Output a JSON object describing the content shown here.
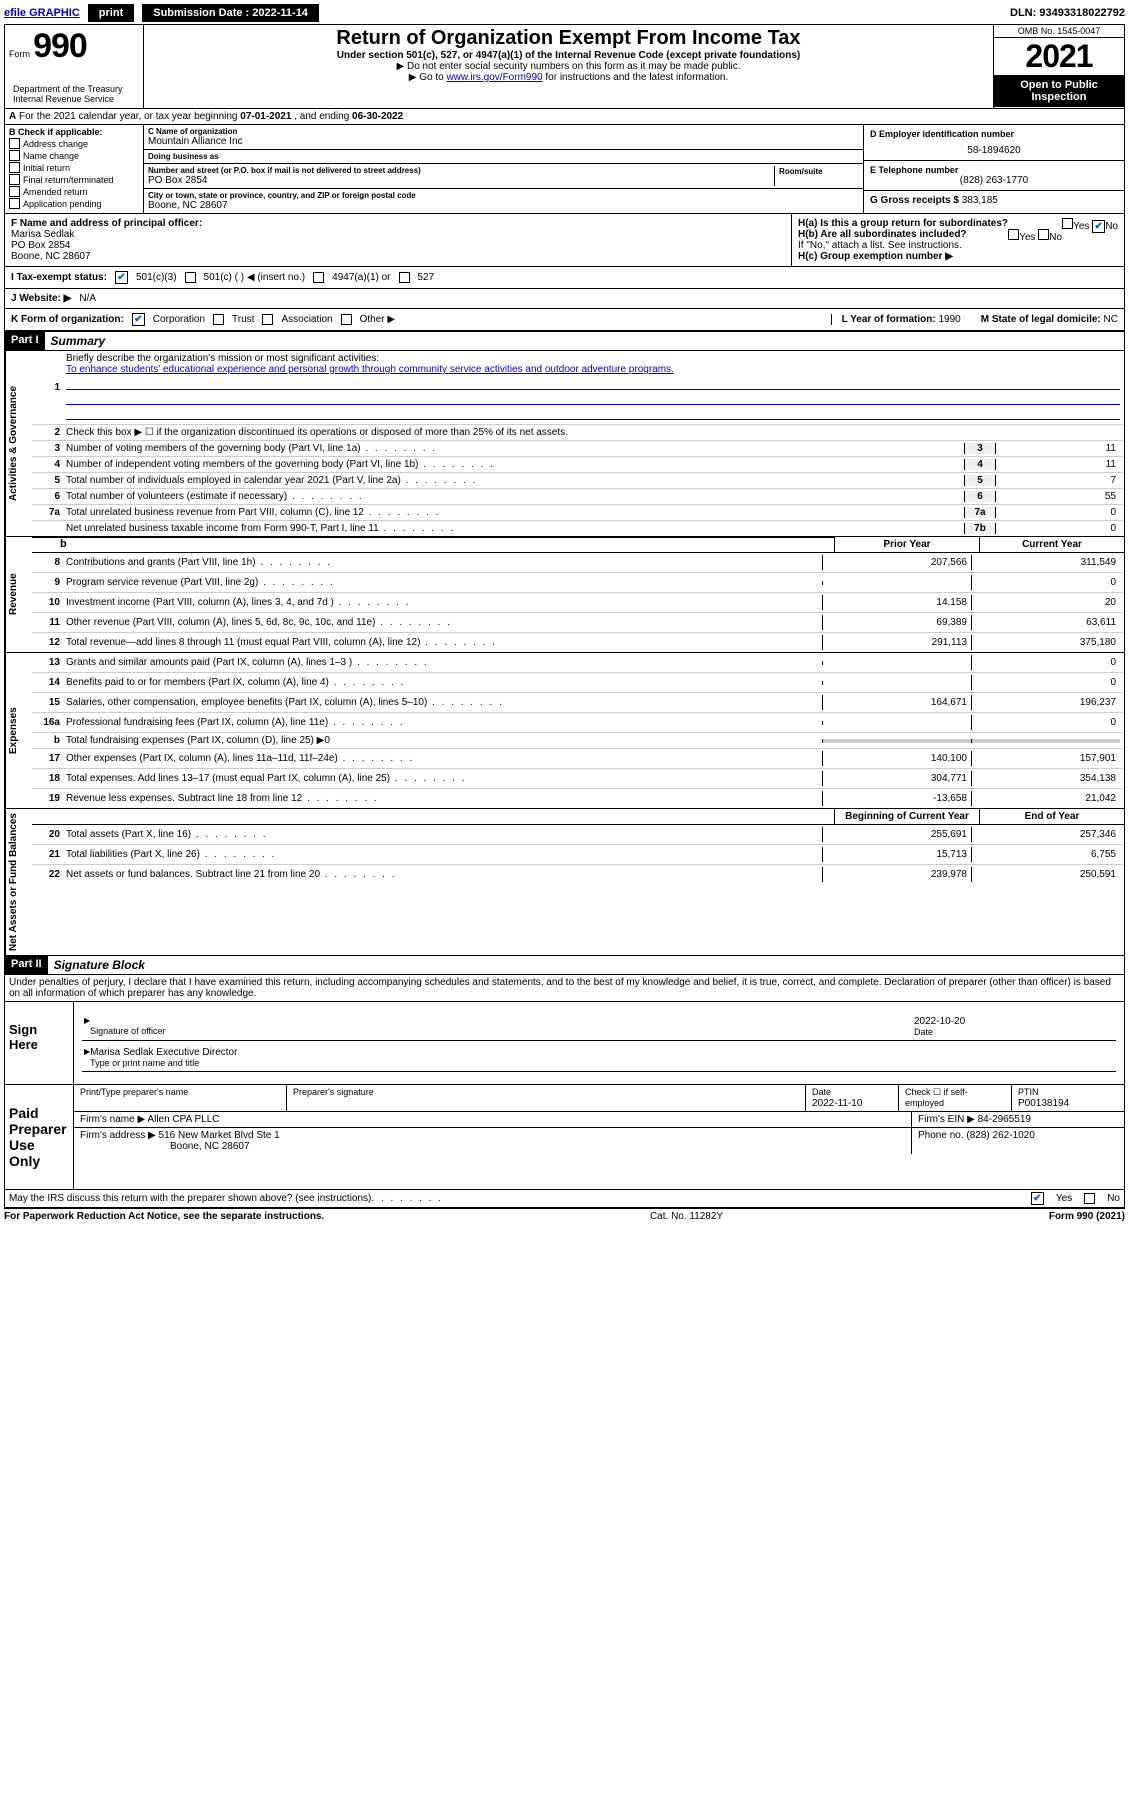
{
  "topbar": {
    "efile": "efile GRAPHIC",
    "print": "print",
    "submission_label": "Submission Date : 2022-11-14",
    "dln": "DLN: 93493318022792"
  },
  "header": {
    "form_label": "Form",
    "form_number": "990",
    "title": "Return of Organization Exempt From Income Tax",
    "subtitle": "Under section 501(c), 527, or 4947(a)(1) of the Internal Revenue Code (except private foundations)",
    "note1": "▶ Do not enter social security numbers on this form as it may be made public.",
    "note2_pre": "▶ Go to ",
    "note2_link": "www.irs.gov/Form990",
    "note2_post": " for instructions and the latest information.",
    "dept": "Department of the Treasury\nInternal Revenue Service",
    "omb": "OMB No. 1545-0047",
    "year": "2021",
    "open_public": "Open to Public Inspection"
  },
  "section_a": {
    "text_pre": "For the 2021 calendar year, or tax year beginning ",
    "begin": "07-01-2021",
    "mid": " , and ending ",
    "end": "06-30-2022"
  },
  "box_b": {
    "label": "B Check if applicable:",
    "items": [
      "Address change",
      "Name change",
      "Initial return",
      "Final return/terminated",
      "Amended return",
      "Application pending"
    ]
  },
  "box_c": {
    "name_label": "C Name of organization",
    "name": "Mountain Alliance Inc",
    "dba_label": "Doing business as",
    "addr_label": "Number and street (or P.O. box if mail is not delivered to street address)",
    "addr": "PO Box 2854",
    "room_label": "Room/suite",
    "city_label": "City or town, state or province, country, and ZIP or foreign postal code",
    "city": "Boone, NC  28607"
  },
  "box_d": {
    "label": "D Employer identification number",
    "value": "58-1894620"
  },
  "box_e": {
    "label": "E Telephone number",
    "value": "(828) 263-1770"
  },
  "box_g": {
    "label": "G Gross receipts $",
    "value": "383,185"
  },
  "box_f": {
    "label": "F Name and address of principal officer:",
    "name": "Marisa Sedlak",
    "addr1": "PO Box 2854",
    "addr2": "Boone, NC  28607"
  },
  "box_h": {
    "ha": "H(a)  Is this a group return for subordinates?",
    "hb": "H(b)  Are all subordinates included?",
    "hb_note": "If \"No,\" attach a list. See instructions.",
    "hc": "H(c)  Group exemption number ▶",
    "yes": "Yes",
    "no": "No"
  },
  "box_i": {
    "label": "I    Tax-exempt status:",
    "opt1": "501(c)(3)",
    "opt2": "501(c) (  ) ◀ (insert no.)",
    "opt3": "4947(a)(1) or",
    "opt4": "527"
  },
  "box_j": {
    "label": "J   Website: ▶",
    "value": "N/A"
  },
  "box_k": {
    "label": "K Form of organization:",
    "corp": "Corporation",
    "trust": "Trust",
    "assoc": "Association",
    "other": "Other ▶",
    "l_label": "L Year of formation:",
    "l_val": "1990",
    "m_label": "M State of legal domicile:",
    "m_val": "NC"
  },
  "part1": {
    "header": "Part I",
    "title": "Summary",
    "q1": "Briefly describe the organization's mission or most significant activities:",
    "q1_ans": "To enhance students' educational experience and personal growth through community service activities and outdoor adventure programs.",
    "q2": "Check this box ▶ ☐  if the organization discontinued its operations or disposed of more than 25% of its net assets.",
    "lines_gov": [
      {
        "n": "3",
        "t": "Number of voting members of the governing body (Part VI, line 1a)",
        "c": "3",
        "v": "11"
      },
      {
        "n": "4",
        "t": "Number of independent voting members of the governing body (Part VI, line 1b)",
        "c": "4",
        "v": "11"
      },
      {
        "n": "5",
        "t": "Total number of individuals employed in calendar year 2021 (Part V, line 2a)",
        "c": "5",
        "v": "7"
      },
      {
        "n": "6",
        "t": "Total number of volunteers (estimate if necessary)",
        "c": "6",
        "v": "55"
      },
      {
        "n": "7a",
        "t": "Total unrelated business revenue from Part VIII, column (C), line 12",
        "c": "7a",
        "v": "0"
      },
      {
        "n": "",
        "t": "Net unrelated business taxable income from Form 990-T, Part I, line 11",
        "c": "7b",
        "v": "0"
      }
    ],
    "prior_hdr": "Prior Year",
    "curr_hdr": "Current Year",
    "lines_rev": [
      {
        "n": "8",
        "t": "Contributions and grants (Part VIII, line 1h)",
        "p": "207,566",
        "c": "311,549"
      },
      {
        "n": "9",
        "t": "Program service revenue (Part VIII, line 2g)",
        "p": "",
        "c": "0"
      },
      {
        "n": "10",
        "t": "Investment income (Part VIII, column (A), lines 3, 4, and 7d )",
        "p": "14,158",
        "c": "20"
      },
      {
        "n": "11",
        "t": "Other revenue (Part VIII, column (A), lines 5, 6d, 8c, 9c, 10c, and 11e)",
        "p": "69,389",
        "c": "63,611"
      },
      {
        "n": "12",
        "t": "Total revenue—add lines 8 through 11 (must equal Part VIII, column (A), line 12)",
        "p": "291,113",
        "c": "375,180"
      }
    ],
    "lines_exp": [
      {
        "n": "13",
        "t": "Grants and similar amounts paid (Part IX, column (A), lines 1–3 )",
        "p": "",
        "c": "0"
      },
      {
        "n": "14",
        "t": "Benefits paid to or for members (Part IX, column (A), line 4)",
        "p": "",
        "c": "0"
      },
      {
        "n": "15",
        "t": "Salaries, other compensation, employee benefits (Part IX, column (A), lines 5–10)",
        "p": "164,671",
        "c": "196,237"
      },
      {
        "n": "16a",
        "t": "Professional fundraising fees (Part IX, column (A), line 11e)",
        "p": "",
        "c": "0"
      },
      {
        "n": "b",
        "t": "Total fundraising expenses (Part IX, column (D), line 25) ▶0",
        "p": "—",
        "c": "—"
      },
      {
        "n": "17",
        "t": "Other expenses (Part IX, column (A), lines 11a–11d, 11f–24e)",
        "p": "140,100",
        "c": "157,901"
      },
      {
        "n": "18",
        "t": "Total expenses. Add lines 13–17 (must equal Part IX, column (A), line 25)",
        "p": "304,771",
        "c": "354,138"
      },
      {
        "n": "19",
        "t": "Revenue less expenses. Subtract line 18 from line 12",
        "p": "-13,658",
        "c": "21,042"
      }
    ],
    "boy_hdr": "Beginning of Current Year",
    "eoy_hdr": "End of Year",
    "lines_net": [
      {
        "n": "20",
        "t": "Total assets (Part X, line 16)",
        "p": "255,691",
        "c": "257,346"
      },
      {
        "n": "21",
        "t": "Total liabilities (Part X, line 26)",
        "p": "15,713",
        "c": "6,755"
      },
      {
        "n": "22",
        "t": "Net assets or fund balances. Subtract line 21 from line 20",
        "p": "239,978",
        "c": "250,591"
      }
    ],
    "vlabels": {
      "gov": "Activities & Governance",
      "rev": "Revenue",
      "exp": "Expenses",
      "net": "Net Assets or Fund Balances"
    }
  },
  "part2": {
    "header": "Part II",
    "title": "Signature Block",
    "perjury": "Under penalties of perjury, I declare that I have examined this return, including accompanying schedules and statements, and to the best of my knowledge and belief, it is true, correct, and complete. Declaration of preparer (other than officer) is based on all information of which preparer has any knowledge.",
    "sign_here": "Sign Here",
    "sig_officer": "Signature of officer",
    "sig_date": "2022-10-20",
    "date_lbl": "Date",
    "officer_name": "Marisa Sedlak  Executive Director",
    "type_name": "Type or print name and title",
    "paid_prep": "Paid Preparer Use Only",
    "prep_name_lbl": "Print/Type preparer's name",
    "prep_sig_lbl": "Preparer's signature",
    "prep_date_lbl": "Date",
    "prep_date": "2022-11-10",
    "check_self": "Check ☐ if self-employed",
    "ptin_lbl": "PTIN",
    "ptin": "P00138194",
    "firm_name_lbl": "Firm's name    ▶",
    "firm_name": "Allen CPA PLLC",
    "firm_ein_lbl": "Firm's EIN ▶",
    "firm_ein": "84-2965519",
    "firm_addr_lbl": "Firm's address ▶",
    "firm_addr1": "516 New Market Blvd Ste 1",
    "firm_addr2": "Boone, NC  28607",
    "phone_lbl": "Phone no.",
    "phone": "(828) 262-1020",
    "discuss": "May the IRS discuss this return with the preparer shown above? (see instructions)",
    "yes": "Yes",
    "no": "No"
  },
  "footer": {
    "paperwork": "For Paperwork Reduction Act Notice, see the separate instructions.",
    "cat": "Cat. No. 11282Y",
    "form": "Form 990 (2021)"
  }
}
